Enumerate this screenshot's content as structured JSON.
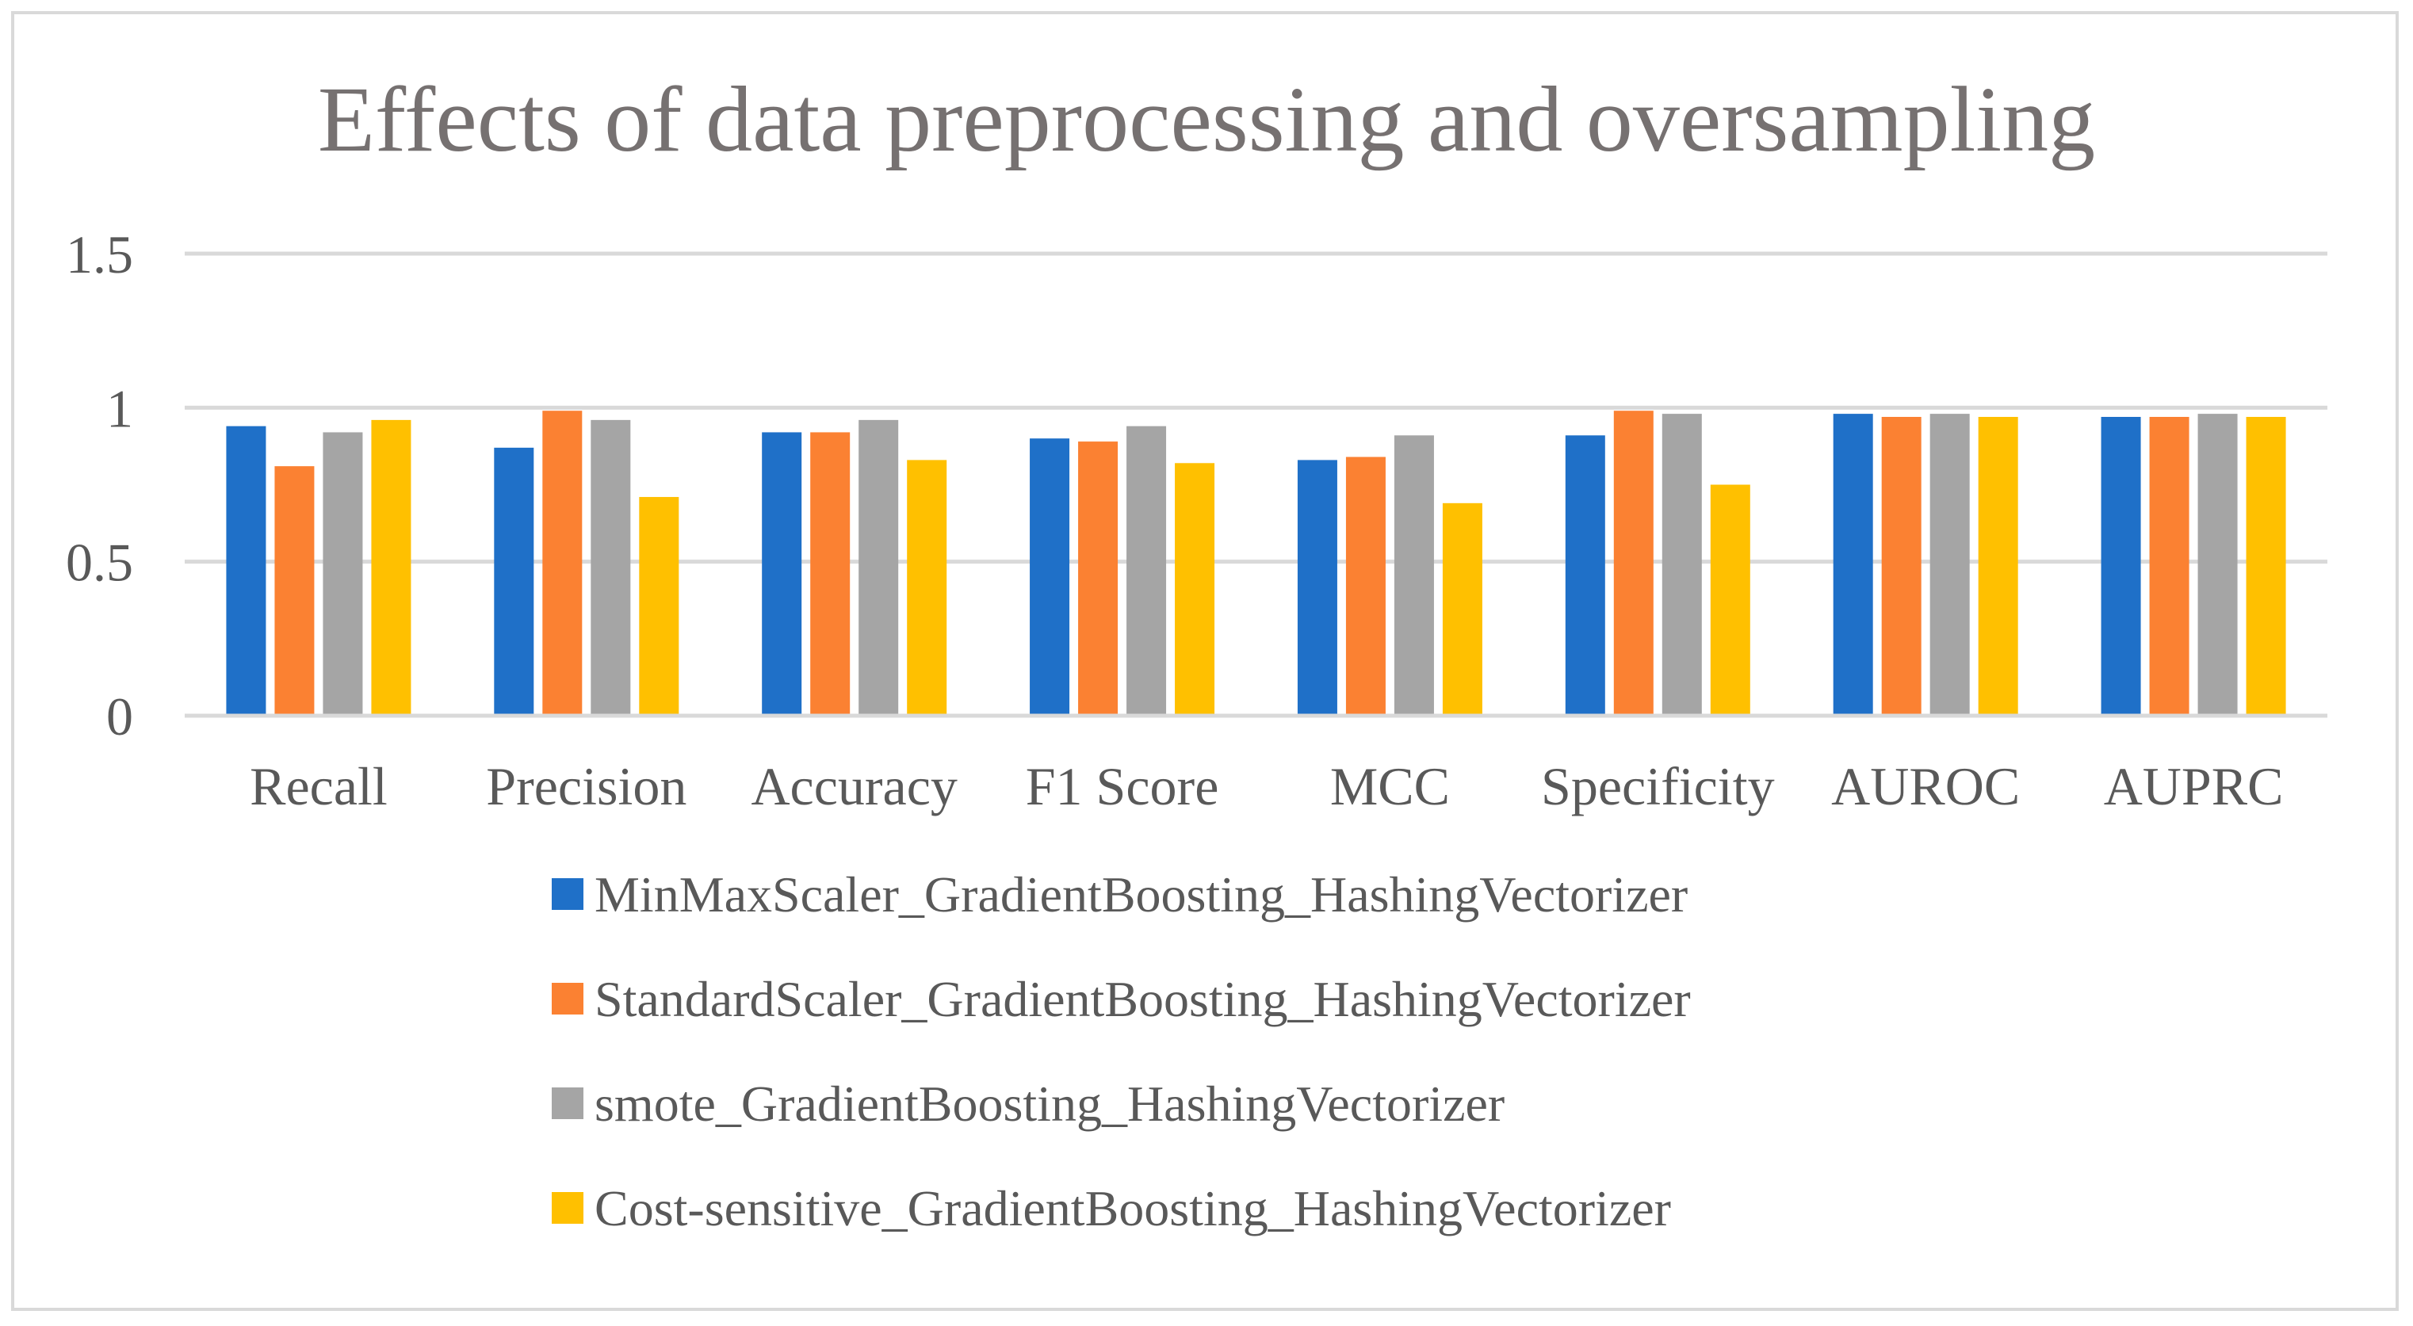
{
  "chart_data": {
    "type": "bar",
    "title": "Effects of data preprocessing and oversampling",
    "xlabel": "",
    "ylabel": "",
    "ylim": [
      0,
      1.5
    ],
    "yticks": [
      0,
      0.5,
      1,
      1.5
    ],
    "ytick_labels": [
      "0",
      "0.5",
      "1",
      "1.5"
    ],
    "grid": true,
    "legend_position": "bottom",
    "categories": [
      "Recall",
      "Precision",
      "Accuracy",
      "F1 Score",
      "MCC",
      "Specificity",
      "AUROC",
      "AUPRC"
    ],
    "series": [
      {
        "name": "MinMaxScaler_GradientBoosting_HashingVectorizer",
        "color": "#1f70c8",
        "values": [
          0.94,
          0.87,
          0.92,
          0.9,
          0.83,
          0.91,
          0.98,
          0.97
        ]
      },
      {
        "name": "StandardScaler_GradientBoosting_HashingVectorizer",
        "color": "#fb8132",
        "values": [
          0.81,
          0.99,
          0.92,
          0.89,
          0.84,
          0.99,
          0.97,
          0.97
        ]
      },
      {
        "name": "smote_GradientBoosting_HashingVectorizer",
        "color": "#a5a5a5",
        "values": [
          0.92,
          0.96,
          0.96,
          0.94,
          0.91,
          0.98,
          0.98,
          0.98
        ]
      },
      {
        "name": "Cost-sensitive_GradientBoosting_HashingVectorizer",
        "color": "#ffc000",
        "values": [
          0.96,
          0.71,
          0.83,
          0.82,
          0.69,
          0.75,
          0.97,
          0.97
        ]
      }
    ]
  }
}
